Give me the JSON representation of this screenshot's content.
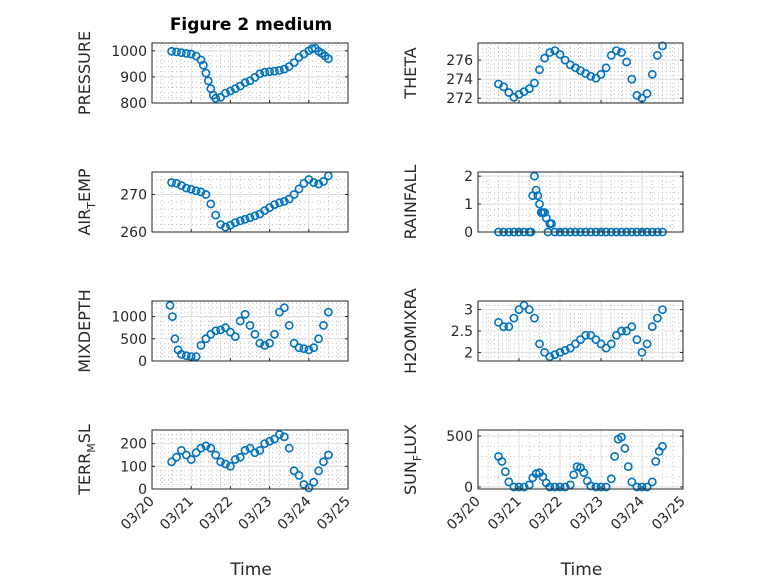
{
  "figure_title": "Figure 2 medium",
  "colors": {
    "marker": "#0072bd",
    "axis": "#262626",
    "grid": "#dfdfdf"
  },
  "chart_data": [
    {
      "type": "scatter",
      "ylabel": "PRESSURE",
      "ylim": [
        800,
        1030
      ],
      "yticks": [
        800,
        900,
        1000
      ],
      "ytick_labels": [
        "800",
        "900",
        "1000"
      ],
      "xticks": [],
      "xtick_labels": [],
      "xlabel": "",
      "title": "Figure 2 medium",
      "x_range": [
        "03/20",
        "03/25"
      ],
      "grid": true,
      "series": [
        {
          "x": [
            "03/20 12:00",
            "03/20 15:00",
            "03/20 18:00",
            "03/20 21:00",
            "03/21 00:00",
            "03/21 03:00",
            "03/21 06:00",
            "03/21 07:30",
            "03/21 09:00",
            "03/21 10:30",
            "03/21 12:00",
            "03/21 13:30",
            "03/21 15:00",
            "03/21 18:00",
            "03/21 21:00",
            "03/22 00:00",
            "03/22 03:00",
            "03/22 06:00",
            "03/22 09:00",
            "03/22 12:00",
            "03/22 15:00",
            "03/22 18:00",
            "03/22 21:00",
            "03/23 00:00",
            "03/23 03:00",
            "03/23 06:00",
            "03/23 09:00",
            "03/23 12:00",
            "03/23 15:00",
            "03/23 18:00",
            "03/23 21:00",
            "03/24 00:00",
            "03/24 02:00",
            "03/24 04:00",
            "03/24 06:00",
            "03/24 08:00",
            "03/24 10:00",
            "03/24 12:00"
          ],
          "y": [
            998,
            996,
            993,
            990,
            988,
            980,
            965,
            945,
            915,
            885,
            855,
            830,
            818,
            822,
            838,
            846,
            855,
            865,
            878,
            885,
            898,
            912,
            918,
            920,
            922,
            925,
            930,
            940,
            955,
            975,
            988,
            1000,
            1008,
            1010,
            998,
            990,
            980,
            970
          ]
        }
      ]
    },
    {
      "type": "scatter",
      "ylabel": "THETA",
      "ylim": [
        271.5,
        277.8
      ],
      "yticks": [
        272,
        274,
        276
      ],
      "ytick_labels": [
        "272",
        "274",
        "276"
      ],
      "xticks": [],
      "xtick_labels": [],
      "xlabel": "",
      "x_range": [
        "03/20",
        "03/25"
      ],
      "grid": true,
      "series": [
        {
          "x": [
            "03/20 12:00",
            "03/20 15:00",
            "03/20 18:00",
            "03/20 21:00",
            "03/21 00:00",
            "03/21 03:00",
            "03/21 06:00",
            "03/21 09:00",
            "03/21 12:00",
            "03/21 15:00",
            "03/21 18:00",
            "03/21 21:00",
            "03/22 00:00",
            "03/22 03:00",
            "03/22 06:00",
            "03/22 09:00",
            "03/22 12:00",
            "03/22 15:00",
            "03/22 18:00",
            "03/22 21:00",
            "03/23 00:00",
            "03/23 03:00",
            "03/23 06:00",
            "03/23 09:00",
            "03/23 12:00",
            "03/23 15:00",
            "03/23 18:00",
            "03/23 21:00",
            "03/24 00:00",
            "03/24 03:00",
            "03/24 06:00",
            "03/24 09:00",
            "03/24 12:00"
          ],
          "y": [
            273.5,
            273.2,
            272.6,
            272.1,
            272.4,
            272.7,
            273.0,
            273.6,
            275.0,
            276.2,
            276.8,
            277.0,
            276.6,
            276.0,
            275.5,
            275.2,
            274.9,
            274.6,
            274.3,
            274.1,
            274.5,
            275.2,
            276.5,
            277.0,
            276.8,
            275.8,
            274.0,
            272.3,
            272.0,
            272.5,
            274.5,
            276.5,
            277.5
          ]
        }
      ]
    },
    {
      "type": "scatter",
      "ylabel": "AIR_TEMP",
      "ylim": [
        260,
        276
      ],
      "yticks": [
        260,
        270
      ],
      "ytick_labels": [
        "260",
        "270"
      ],
      "xticks": [],
      "xtick_labels": [],
      "xlabel": "",
      "x_range": [
        "03/20",
        "03/25"
      ],
      "grid": true,
      "series": [
        {
          "x": [
            "03/20 12:00",
            "03/20 15:00",
            "03/20 18:00",
            "03/20 21:00",
            "03/21 00:00",
            "03/21 03:00",
            "03/21 06:00",
            "03/21 09:00",
            "03/21 12:00",
            "03/21 15:00",
            "03/21 18:00",
            "03/21 21:00",
            "03/22 00:00",
            "03/22 03:00",
            "03/22 06:00",
            "03/22 09:00",
            "03/22 12:00",
            "03/22 15:00",
            "03/22 18:00",
            "03/22 21:00",
            "03/23 00:00",
            "03/23 03:00",
            "03/23 06:00",
            "03/23 09:00",
            "03/23 12:00",
            "03/23 15:00",
            "03/23 18:00",
            "03/23 21:00",
            "03/24 00:00",
            "03/24 03:00",
            "03/24 06:00",
            "03/24 09:00",
            "03/24 12:00"
          ],
          "y": [
            273.2,
            273.0,
            272.4,
            271.7,
            271.4,
            271.0,
            270.7,
            270.0,
            267.5,
            264.5,
            262.0,
            261.3,
            261.8,
            262.5,
            263.0,
            263.4,
            263.8,
            264.3,
            264.8,
            265.7,
            266.5,
            267.3,
            267.8,
            268.2,
            268.8,
            270.0,
            271.5,
            273.0,
            274.0,
            273.2,
            272.8,
            273.5,
            275.0
          ]
        }
      ]
    },
    {
      "type": "scatter",
      "ylabel": "RAINFALL",
      "ylim": [
        0,
        2.15
      ],
      "yticks": [
        0,
        1,
        2
      ],
      "ytick_labels": [
        "0",
        "1",
        "2"
      ],
      "xticks": [],
      "xtick_labels": [],
      "xlabel": "",
      "x_range": [
        "03/20",
        "03/25"
      ],
      "grid": true,
      "series": [
        {
          "x": [
            "03/20 12:00",
            "03/20 15:00",
            "03/20 18:00",
            "03/20 21:00",
            "03/21 00:00",
            "03/21 03:00",
            "03/21 06:00",
            "03/21 07:00",
            "03/21 08:00",
            "03/21 09:00",
            "03/21 10:00",
            "03/21 11:00",
            "03/21 12:00",
            "03/21 13:00",
            "03/21 14:00",
            "03/21 15:00",
            "03/21 16:00",
            "03/21 17:00",
            "03/21 18:00",
            "03/21 19:00",
            "03/21 21:00",
            "03/22 00:00",
            "03/22 03:00",
            "03/22 06:00",
            "03/22 09:00",
            "03/22 12:00",
            "03/22 15:00",
            "03/22 18:00",
            "03/22 21:00",
            "03/23 00:00",
            "03/23 03:00",
            "03/23 06:00",
            "03/23 09:00",
            "03/23 12:00",
            "03/23 15:00",
            "03/23 18:00",
            "03/23 21:00",
            "03/24 00:00",
            "03/24 03:00",
            "03/24 06:00",
            "03/24 09:00",
            "03/24 12:00"
          ],
          "y": [
            0,
            0,
            0,
            0,
            0,
            0,
            0,
            0,
            1.3,
            2.0,
            1.5,
            1.3,
            1.0,
            0.7,
            0.7,
            0.7,
            0.5,
            0.0,
            0.3,
            0.3,
            0,
            0,
            0,
            0,
            0,
            0,
            0,
            0,
            0,
            0,
            0,
            0,
            0,
            0,
            0,
            0,
            0,
            0,
            0,
            0,
            0,
            0
          ]
        }
      ]
    },
    {
      "type": "scatter",
      "ylabel": "MIXDEPTH",
      "ylim": [
        0,
        1350
      ],
      "yticks": [
        0,
        500,
        1000
      ],
      "ytick_labels": [
        "0",
        "500",
        "1000"
      ],
      "xticks": [],
      "xtick_labels": [],
      "xlabel": "",
      "x_range": [
        "03/20",
        "03/25"
      ],
      "grid": true,
      "series": [
        {
          "x": [
            "03/20 11:00",
            "03/20 12:30",
            "03/20 14:00",
            "03/20 16:00",
            "03/20 18:00",
            "03/20 21:00",
            "03/21 00:00",
            "03/21 03:00",
            "03/21 06:00",
            "03/21 09:00",
            "03/21 12:00",
            "03/21 15:00",
            "03/21 18:00",
            "03/21 21:00",
            "03/22 00:00",
            "03/22 03:00",
            "03/22 06:00",
            "03/22 09:00",
            "03/22 12:00",
            "03/22 15:00",
            "03/22 18:00",
            "03/22 21:00",
            "03/23 00:00",
            "03/23 03:00",
            "03/23 06:00",
            "03/23 09:00",
            "03/23 12:00",
            "03/23 15:00",
            "03/23 18:00",
            "03/23 21:00",
            "03/24 00:00",
            "03/24 03:00",
            "03/24 06:00",
            "03/24 09:00",
            "03/24 12:00"
          ],
          "y": [
            1250,
            1000,
            500,
            250,
            150,
            120,
            100,
            100,
            350,
            500,
            600,
            680,
            700,
            750,
            650,
            550,
            900,
            1050,
            800,
            600,
            400,
            350,
            400,
            600,
            1100,
            1200,
            800,
            400,
            300,
            280,
            250,
            300,
            500,
            800,
            1100
          ]
        }
      ]
    },
    {
      "type": "scatter",
      "ylabel": "H2OMIXRA",
      "ylim": [
        1.8,
        3.2
      ],
      "yticks": [
        2,
        2.5,
        3
      ],
      "ytick_labels": [
        "2",
        "2.5",
        "3"
      ],
      "xticks": [],
      "xtick_labels": [],
      "xlabel": "",
      "x_range": [
        "03/20",
        "03/25"
      ],
      "grid": true,
      "series": [
        {
          "x": [
            "03/20 12:00",
            "03/20 15:00",
            "03/20 18:00",
            "03/20 21:00",
            "03/21 00:00",
            "03/21 03:00",
            "03/21 06:00",
            "03/21 09:00",
            "03/21 12:00",
            "03/21 15:00",
            "03/21 18:00",
            "03/21 21:00",
            "03/22 00:00",
            "03/22 03:00",
            "03/22 06:00",
            "03/22 09:00",
            "03/22 12:00",
            "03/22 15:00",
            "03/22 18:00",
            "03/22 21:00",
            "03/23 00:00",
            "03/23 03:00",
            "03/23 06:00",
            "03/23 09:00",
            "03/23 12:00",
            "03/23 15:00",
            "03/23 18:00",
            "03/23 21:00",
            "03/24 00:00",
            "03/24 03:00",
            "03/24 06:00",
            "03/24 09:00",
            "03/24 12:00"
          ],
          "y": [
            2.7,
            2.6,
            2.6,
            2.8,
            3.0,
            3.1,
            3.0,
            2.8,
            2.2,
            2.0,
            1.9,
            1.95,
            2.0,
            2.05,
            2.1,
            2.2,
            2.3,
            2.4,
            2.4,
            2.3,
            2.2,
            2.1,
            2.2,
            2.4,
            2.5,
            2.5,
            2.6,
            2.3,
            2.0,
            2.2,
            2.6,
            2.8,
            3.0
          ]
        }
      ]
    },
    {
      "type": "scatter",
      "ylabel": "TERR_MSL",
      "ylim": [
        0,
        260
      ],
      "yticks": [
        0,
        100,
        200
      ],
      "ytick_labels": [
        "0",
        "100",
        "200"
      ],
      "xticks": [
        "03/20",
        "03/21",
        "03/22",
        "03/23",
        "03/24",
        "03/25"
      ],
      "xtick_labels": [
        "03/20",
        "03/21",
        "03/22",
        "03/23",
        "03/24",
        "03/25"
      ],
      "xlabel": "Time",
      "x_range": [
        "03/20",
        "03/25"
      ],
      "grid": true,
      "series": [
        {
          "x": [
            "03/20 12:00",
            "03/20 15:00",
            "03/20 18:00",
            "03/20 21:00",
            "03/21 00:00",
            "03/21 03:00",
            "03/21 06:00",
            "03/21 09:00",
            "03/21 12:00",
            "03/21 15:00",
            "03/21 18:00",
            "03/21 21:00",
            "03/22 00:00",
            "03/22 03:00",
            "03/22 06:00",
            "03/22 09:00",
            "03/22 12:00",
            "03/22 15:00",
            "03/22 18:00",
            "03/22 21:00",
            "03/23 00:00",
            "03/23 03:00",
            "03/23 06:00",
            "03/23 09:00",
            "03/23 12:00",
            "03/23 15:00",
            "03/23 18:00",
            "03/23 21:00",
            "03/24 00:00",
            "03/24 03:00",
            "03/24 06:00",
            "03/24 09:00",
            "03/24 12:00"
          ],
          "y": [
            120,
            140,
            170,
            150,
            130,
            160,
            180,
            190,
            180,
            150,
            120,
            110,
            100,
            130,
            140,
            170,
            180,
            160,
            170,
            200,
            210,
            220,
            240,
            230,
            180,
            80,
            60,
            20,
            5,
            30,
            80,
            120,
            150
          ]
        }
      ]
    },
    {
      "type": "scatter",
      "ylabel": "SUN_FLUX",
      "ylim": [
        -20,
        560
      ],
      "yticks": [
        0,
        500
      ],
      "ytick_labels": [
        "0",
        "500"
      ],
      "xticks": [
        "03/20",
        "03/21",
        "03/22",
        "03/23",
        "03/24",
        "03/25"
      ],
      "xtick_labels": [
        "03/20",
        "03/21",
        "03/22",
        "03/23",
        "03/24",
        "03/25"
      ],
      "xlabel": "Time",
      "x_range": [
        "03/20",
        "03/25"
      ],
      "grid": true,
      "series": [
        {
          "x": [
            "03/20 12:00",
            "03/20 14:00",
            "03/20 16:00",
            "03/20 18:00",
            "03/20 21:00",
            "03/21 00:00",
            "03/21 03:00",
            "03/21 06:00",
            "03/21 08:00",
            "03/21 10:00",
            "03/21 12:00",
            "03/21 14:00",
            "03/21 16:00",
            "03/21 18:00",
            "03/21 21:00",
            "03/22 00:00",
            "03/22 03:00",
            "03/22 06:00",
            "03/22 08:00",
            "03/22 10:00",
            "03/22 12:00",
            "03/22 14:00",
            "03/22 16:00",
            "03/22 18:00",
            "03/22 21:00",
            "03/23 00:00",
            "03/23 03:00",
            "03/23 06:00",
            "03/23 08:00",
            "03/23 10:00",
            "03/23 12:00",
            "03/23 14:00",
            "03/23 16:00",
            "03/23 18:00",
            "03/23 21:00",
            "03/24 00:00",
            "03/24 03:00",
            "03/24 06:00",
            "03/24 08:00",
            "03/24 10:00",
            "03/24 12:00"
          ],
          "y": [
            300,
            250,
            150,
            50,
            0,
            0,
            0,
            20,
            90,
            130,
            140,
            100,
            40,
            0,
            0,
            0,
            0,
            20,
            120,
            200,
            190,
            140,
            60,
            10,
            0,
            0,
            0,
            80,
            300,
            470,
            490,
            380,
            200,
            50,
            0,
            0,
            0,
            50,
            250,
            350,
            400
          ]
        }
      ]
    }
  ]
}
